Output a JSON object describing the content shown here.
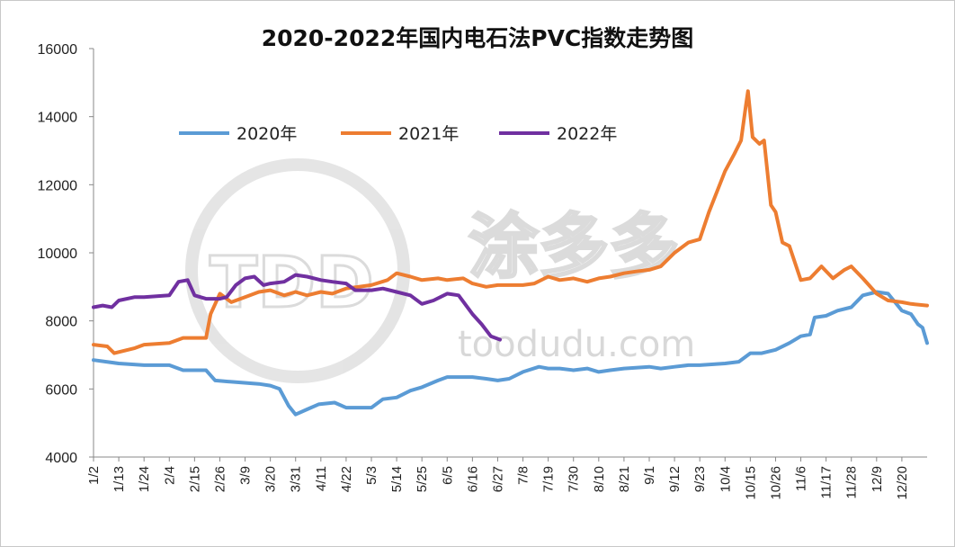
{
  "chart_data": {
    "type": "line",
    "title": "2020-2022年国内电石法PVC指数走势图",
    "ylim": [
      4000,
      16000
    ],
    "yticks": [
      4000,
      6000,
      8000,
      10000,
      12000,
      14000,
      16000
    ],
    "x_tick_labels": [
      "1/2",
      "1/13",
      "1/24",
      "2/4",
      "2/15",
      "2/26",
      "3/9",
      "3/20",
      "3/31",
      "4/11",
      "4/22",
      "5/3",
      "5/14",
      "5/25",
      "6/5",
      "6/16",
      "6/27",
      "7/8",
      "7/19",
      "7/30",
      "8/10",
      "8/21",
      "9/1",
      "9/12",
      "9/23",
      "10/4",
      "10/15",
      "10/26",
      "11/6",
      "11/17",
      "11/28",
      "12/9",
      "12/20"
    ],
    "x_domain": [
      "1/2",
      "12/31"
    ],
    "grid": false,
    "legend_position": "top-left, inside plot",
    "series": [
      {
        "name": "2020年",
        "color": "#5b9bd5",
        "points": [
          [
            "1/2",
            6850
          ],
          [
            "1/13",
            6750
          ],
          [
            "1/24",
            6700
          ],
          [
            "2/4",
            6700
          ],
          [
            "2/10",
            6550
          ],
          [
            "2/20",
            6550
          ],
          [
            "2/24",
            6250
          ],
          [
            "3/5",
            6200
          ],
          [
            "3/15",
            6150
          ],
          [
            "3/20",
            6100
          ],
          [
            "3/24",
            6000
          ],
          [
            "3/28",
            5500
          ],
          [
            "3/31",
            5250
          ],
          [
            "4/5",
            5400
          ],
          [
            "4/10",
            5550
          ],
          [
            "4/17",
            5600
          ],
          [
            "4/22",
            5450
          ],
          [
            "5/3",
            5450
          ],
          [
            "5/8",
            5700
          ],
          [
            "5/14",
            5750
          ],
          [
            "5/20",
            5950
          ],
          [
            "5/25",
            6050
          ],
          [
            "6/1",
            6250
          ],
          [
            "6/5",
            6350
          ],
          [
            "6/16",
            6350
          ],
          [
            "6/22",
            6300
          ],
          [
            "6/27",
            6250
          ],
          [
            "7/2",
            6300
          ],
          [
            "7/8",
            6500
          ],
          [
            "7/15",
            6650
          ],
          [
            "7/19",
            6600
          ],
          [
            "7/24",
            6600
          ],
          [
            "7/30",
            6550
          ],
          [
            "8/5",
            6600
          ],
          [
            "8/10",
            6500
          ],
          [
            "8/15",
            6550
          ],
          [
            "8/21",
            6600
          ],
          [
            "9/1",
            6650
          ],
          [
            "9/6",
            6600
          ],
          [
            "9/12",
            6650
          ],
          [
            "9/18",
            6700
          ],
          [
            "9/23",
            6700
          ],
          [
            "10/4",
            6750
          ],
          [
            "10/10",
            6800
          ],
          [
            "10/15",
            7050
          ],
          [
            "10/20",
            7050
          ],
          [
            "10/26",
            7150
          ],
          [
            "11/1",
            7350
          ],
          [
            "11/6",
            7550
          ],
          [
            "11/10",
            7600
          ],
          [
            "11/12",
            8100
          ],
          [
            "11/17",
            8150
          ],
          [
            "11/22",
            8300
          ],
          [
            "11/28",
            8400
          ],
          [
            "12/3",
            8750
          ],
          [
            "12/9",
            8850
          ],
          [
            "12/14",
            8800
          ],
          [
            "12/20",
            8300
          ],
          [
            "12/24",
            8200
          ],
          [
            "12/27",
            7900
          ],
          [
            "12/29",
            7800
          ],
          [
            "12/31",
            7350
          ]
        ]
      },
      {
        "name": "2021年",
        "color": "#ed7d31",
        "points": [
          [
            "1/2",
            7300
          ],
          [
            "1/8",
            7250
          ],
          [
            "1/11",
            7050
          ],
          [
            "1/20",
            7200
          ],
          [
            "1/24",
            7300
          ],
          [
            "2/4",
            7350
          ],
          [
            "2/10",
            7500
          ],
          [
            "2/20",
            7500
          ],
          [
            "2/22",
            8200
          ],
          [
            "2/26",
            8800
          ],
          [
            "3/3",
            8550
          ],
          [
            "3/9",
            8700
          ],
          [
            "3/15",
            8850
          ],
          [
            "3/20",
            8900
          ],
          [
            "3/26",
            8750
          ],
          [
            "3/31",
            8850
          ],
          [
            "4/5",
            8750
          ],
          [
            "4/11",
            8850
          ],
          [
            "4/16",
            8800
          ],
          [
            "4/22",
            8950
          ],
          [
            "5/3",
            9050
          ],
          [
            "5/10",
            9200
          ],
          [
            "5/14",
            9400
          ],
          [
            "5/20",
            9300
          ],
          [
            "5/25",
            9200
          ],
          [
            "6/1",
            9250
          ],
          [
            "6/5",
            9200
          ],
          [
            "6/12",
            9250
          ],
          [
            "6/16",
            9100
          ],
          [
            "6/22",
            9000
          ],
          [
            "6/27",
            9050
          ],
          [
            "7/2",
            9050
          ],
          [
            "7/8",
            9050
          ],
          [
            "7/13",
            9100
          ],
          [
            "7/19",
            9300
          ],
          [
            "7/24",
            9200
          ],
          [
            "7/30",
            9250
          ],
          [
            "8/5",
            9150
          ],
          [
            "8/10",
            9250
          ],
          [
            "8/15",
            9300
          ],
          [
            "8/21",
            9400
          ],
          [
            "8/26",
            9450
          ],
          [
            "9/1",
            9500
          ],
          [
            "9/6",
            9600
          ],
          [
            "9/12",
            10000
          ],
          [
            "9/18",
            10300
          ],
          [
            "9/23",
            10400
          ],
          [
            "9/27",
            11200
          ],
          [
            "10/4",
            12400
          ],
          [
            "10/8",
            12900
          ],
          [
            "10/11",
            13300
          ],
          [
            "10/13",
            14300
          ],
          [
            "10/14",
            14750
          ],
          [
            "10/16",
            13400
          ],
          [
            "10/19",
            13200
          ],
          [
            "10/21",
            13300
          ],
          [
            "10/24",
            11400
          ],
          [
            "10/26",
            11200
          ],
          [
            "10/29",
            10300
          ],
          [
            "11/1",
            10200
          ],
          [
            "11/6",
            9200
          ],
          [
            "11/10",
            9250
          ],
          [
            "11/15",
            9600
          ],
          [
            "11/20",
            9250
          ],
          [
            "11/25",
            9500
          ],
          [
            "11/28",
            9600
          ],
          [
            "12/3",
            9250
          ],
          [
            "12/9",
            8800
          ],
          [
            "12/14",
            8600
          ],
          [
            "12/20",
            8550
          ],
          [
            "12/24",
            8500
          ],
          [
            "12/31",
            8450
          ]
        ]
      },
      {
        "name": "2022年",
        "color": "#7030a0",
        "points": [
          [
            "1/2",
            8400
          ],
          [
            "1/6",
            8450
          ],
          [
            "1/10",
            8400
          ],
          [
            "1/13",
            8600
          ],
          [
            "1/20",
            8700
          ],
          [
            "1/24",
            8700
          ],
          [
            "2/4",
            8750
          ],
          [
            "2/8",
            9150
          ],
          [
            "2/12",
            9200
          ],
          [
            "2/15",
            8750
          ],
          [
            "2/20",
            8650
          ],
          [
            "2/26",
            8650
          ],
          [
            "3/1",
            8700
          ],
          [
            "3/5",
            9050
          ],
          [
            "3/9",
            9250
          ],
          [
            "3/13",
            9300
          ],
          [
            "3/17",
            9050
          ],
          [
            "3/20",
            9100
          ],
          [
            "3/26",
            9150
          ],
          [
            "3/31",
            9350
          ],
          [
            "4/5",
            9300
          ],
          [
            "4/11",
            9200
          ],
          [
            "4/16",
            9150
          ],
          [
            "4/22",
            9100
          ],
          [
            "4/26",
            8900
          ],
          [
            "5/3",
            8900
          ],
          [
            "5/8",
            8950
          ],
          [
            "5/14",
            8850
          ],
          [
            "5/20",
            8750
          ],
          [
            "5/25",
            8500
          ],
          [
            "5/30",
            8600
          ],
          [
            "6/5",
            8800
          ],
          [
            "6/10",
            8750
          ],
          [
            "6/16",
            8200
          ],
          [
            "6/20",
            7900
          ],
          [
            "6/24",
            7550
          ],
          [
            "6/28",
            7450
          ]
        ]
      }
    ]
  },
  "watermark": {
    "logo_text": "TDD",
    "brand": "涂多多",
    "site": "toodudu.com"
  }
}
